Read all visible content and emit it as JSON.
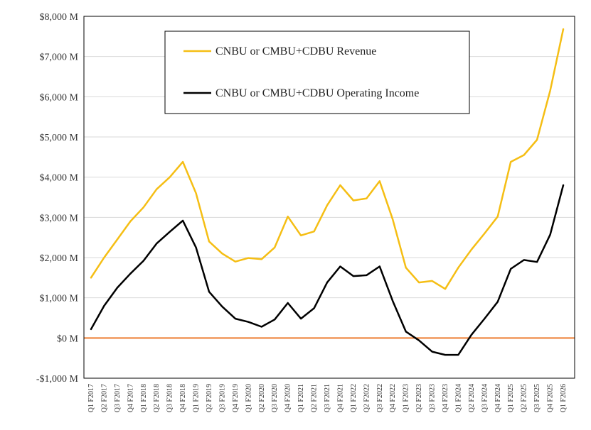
{
  "chart_data": {
    "type": "line",
    "title": "",
    "xlabel": "",
    "ylabel": "",
    "ylim": [
      -1000,
      8000
    ],
    "yticks": [
      -1000,
      0,
      1000,
      2000,
      3000,
      4000,
      5000,
      6000,
      7000,
      8000
    ],
    "ytick_labels": [
      "-$1,000 M",
      "$0 M",
      "$1,000 M",
      "$2,000 M",
      "$3,000 M",
      "$4,000 M",
      "$5,000 M",
      "$6,000 M",
      "$7,000 M",
      "$8,000 M"
    ],
    "grid": true,
    "legend_position": "top-left",
    "categories": [
      "Q1 F2017",
      "Q2 F2017",
      "Q3 F2017",
      "Q4 F2017",
      "Q1 F2018",
      "Q2 F2018",
      "Q3 F2018",
      "Q4 F2018",
      "Q1 F2019",
      "Q2 F2019",
      "Q3 F2019",
      "Q4 F2019",
      "Q1 F2020",
      "Q2 F2020",
      "Q3 F2020",
      "Q4 F2020",
      "Q1 F2021",
      "Q2 F2021",
      "Q3 F2021",
      "Q4 F2021",
      "Q1 F2022",
      "Q2 F2022",
      "Q3 F2022",
      "Q4 F2022",
      "Q1 F2023",
      "Q2 F2023",
      "Q3 F2023",
      "Q4 F2023",
      "Q1 F2024",
      "Q2 F2024",
      "Q3 F2024",
      "Q4 F2024",
      "Q1 F2025",
      "Q2 F2025",
      "Q3 F2025",
      "Q4 F2025",
      "Q1 F2026"
    ],
    "series": [
      {
        "name": "CNBU or CMBU+CDBU Revenue",
        "color": "#F5BE14",
        "values": [
          1500,
          2000,
          2450,
          2900,
          3250,
          3700,
          4000,
          4380,
          3600,
          2400,
          2100,
          1900,
          1990,
          1960,
          2250,
          3020,
          2550,
          2650,
          3300,
          3800,
          3420,
          3470,
          3900,
          2950,
          1750,
          1380,
          1420,
          1220,
          1750,
          2200,
          2600,
          3020,
          4380,
          4550,
          4930,
          6150,
          7680
        ]
      },
      {
        "name": "CNBU or CMBU+CDBU Operating Income",
        "color": "#000000",
        "values": [
          220,
          800,
          1250,
          1600,
          1920,
          2350,
          2640,
          2920,
          2250,
          1150,
          780,
          480,
          400,
          280,
          460,
          870,
          480,
          740,
          1380,
          1780,
          1540,
          1560,
          1780,
          920,
          160,
          -60,
          -340,
          -420,
          -420,
          80,
          480,
          900,
          1720,
          1940,
          1890,
          2570,
          3800
        ]
      }
    ],
    "zero_line_color": "#ED7D31"
  }
}
